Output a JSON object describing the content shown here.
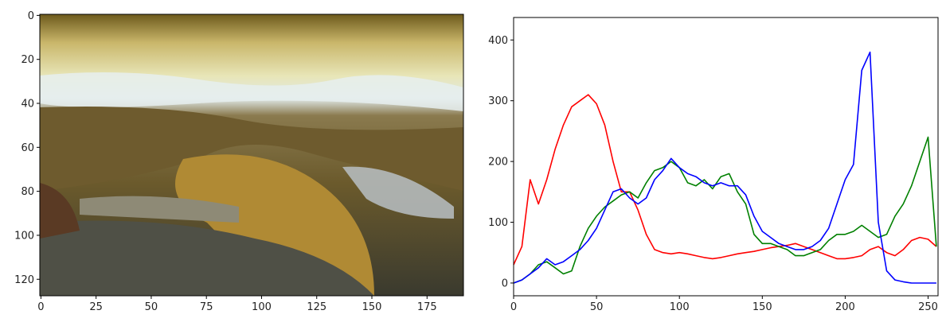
{
  "chart_data": [
    {
      "type": "image",
      "xlim": [
        -0.5,
        191.5
      ],
      "ylim": [
        127.5,
        -0.5
      ],
      "xticks": [
        0,
        25,
        50,
        75,
        100,
        125,
        150,
        175
      ],
      "yticks": [
        0,
        20,
        40,
        60,
        80,
        100,
        120
      ]
    },
    {
      "type": "line",
      "x": [
        0,
        5,
        10,
        15,
        20,
        25,
        30,
        35,
        40,
        45,
        50,
        55,
        60,
        65,
        70,
        75,
        80,
        85,
        90,
        95,
        100,
        105,
        110,
        115,
        120,
        125,
        130,
        135,
        140,
        145,
        150,
        155,
        160,
        165,
        170,
        175,
        180,
        185,
        190,
        195,
        200,
        205,
        210,
        215,
        220,
        225,
        230,
        235,
        240,
        245,
        250,
        255
      ],
      "series": [
        {
          "color": "#ff0000",
          "values": [
            30,
            60,
            170,
            130,
            170,
            220,
            260,
            290,
            300,
            310,
            295,
            260,
            200,
            150,
            150,
            120,
            80,
            55,
            50,
            48,
            50,
            48,
            45,
            42,
            40,
            42,
            45,
            48,
            50,
            52,
            55,
            58,
            60,
            62,
            65,
            60,
            55,
            50,
            45,
            40,
            40,
            42,
            45,
            55,
            60,
            50,
            45,
            55,
            70,
            75,
            72,
            60
          ]
        },
        {
          "color": "#008000",
          "values": [
            0,
            5,
            15,
            30,
            35,
            25,
            15,
            20,
            60,
            90,
            110,
            125,
            135,
            145,
            150,
            140,
            165,
            185,
            190,
            200,
            190,
            165,
            160,
            170,
            155,
            175,
            180,
            150,
            130,
            80,
            65,
            65,
            60,
            55,
            45,
            45,
            50,
            55,
            70,
            80,
            80,
            85,
            95,
            85,
            75,
            80,
            110,
            130,
            160,
            200,
            240,
            60
          ]
        },
        {
          "color": "#0000ff",
          "values": [
            0,
            5,
            15,
            25,
            40,
            30,
            35,
            45,
            55,
            70,
            90,
            120,
            150,
            155,
            140,
            130,
            140,
            170,
            185,
            205,
            190,
            180,
            175,
            165,
            160,
            165,
            160,
            160,
            145,
            110,
            85,
            75,
            65,
            60,
            55,
            55,
            60,
            70,
            90,
            130,
            170,
            195,
            350,
            380,
            100,
            20,
            5,
            2,
            0,
            0,
            0,
            0
          ]
        }
      ],
      "xlim": [
        0,
        256
      ],
      "ylim": [
        -21,
        437
      ],
      "xticks": [
        0,
        50,
        100,
        150,
        200,
        250
      ],
      "yticks": [
        0,
        100,
        200,
        300,
        400
      ]
    }
  ]
}
